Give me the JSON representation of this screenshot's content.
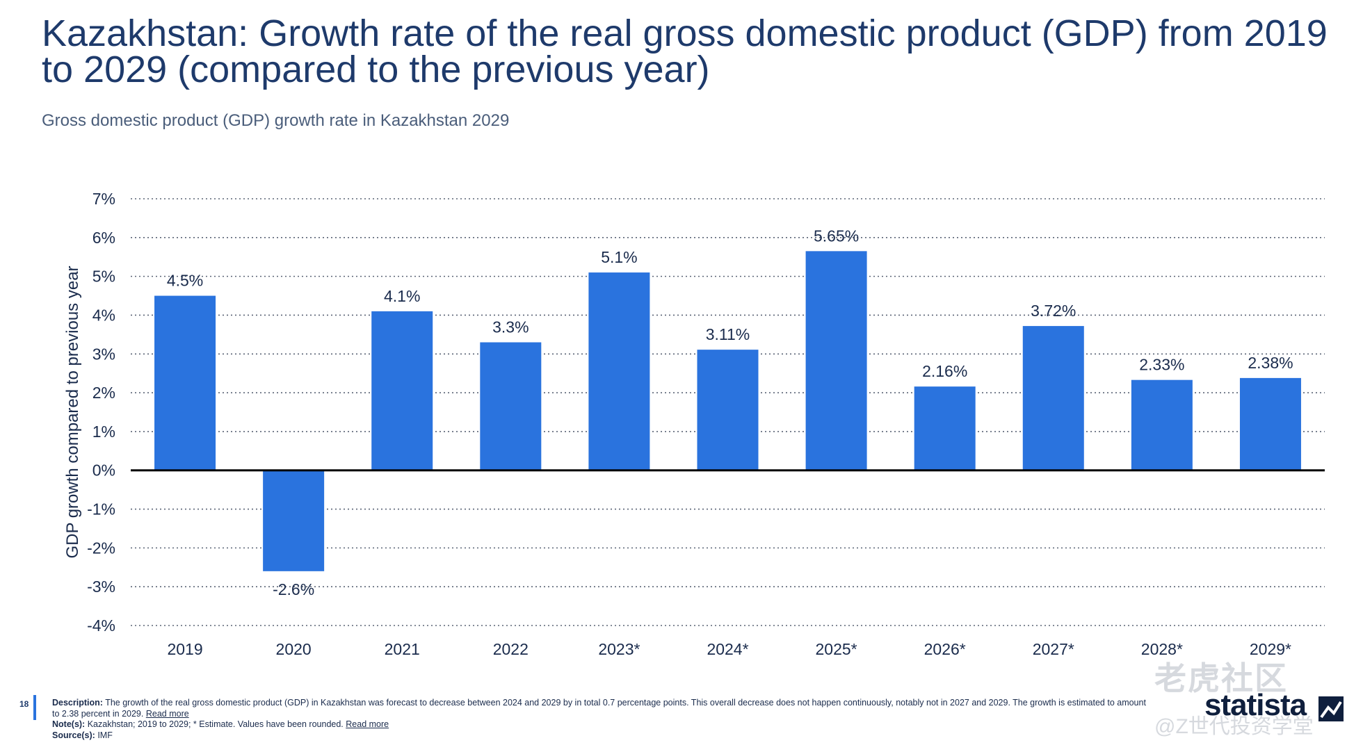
{
  "header": {
    "title": "Kazakhstan: Growth rate of the real gross domestic product (GDP) from 2019 to 2029 (compared to the previous year)",
    "subtitle": "Gross domestic product (GDP) growth rate in Kazakhstan 2029"
  },
  "chart_data": {
    "type": "bar",
    "categories": [
      "2019",
      "2020",
      "2021",
      "2022",
      "2023*",
      "2024*",
      "2025*",
      "2026*",
      "2027*",
      "2028*",
      "2029*"
    ],
    "values": [
      4.5,
      -2.6,
      4.1,
      3.3,
      5.1,
      3.11,
      5.65,
      2.16,
      3.72,
      2.33,
      2.38
    ],
    "labels": [
      "4.5%",
      "-2.6%",
      "4.1%",
      "3.3%",
      "5.1%",
      "3.11%",
      "5.65%",
      "2.16%",
      "3.72%",
      "2.33%",
      "2.38%"
    ],
    "ylabel": "GDP growth compared to previous year",
    "xlabel": "",
    "ylim": [
      -4,
      7
    ],
    "yticks": [
      7,
      6,
      5,
      4,
      3,
      2,
      1,
      0,
      -1,
      -2,
      -3,
      -4
    ],
    "ytick_labels": [
      "7%",
      "6%",
      "5%",
      "4%",
      "3%",
      "2%",
      "1%",
      "0%",
      "-1%",
      "-2%",
      "-3%",
      "-4%"
    ],
    "grid": true,
    "bar_color": "#2a73de"
  },
  "footer": {
    "page_number": "18",
    "description_label": "Description:",
    "description_text": "The growth of the real gross domestic product (GDP) in Kazakhstan was forecast to decrease between 2024 and 2029 by in total 0.7 percentage points. This overall decrease does not happen continuously, notably not in 2027 and 2029. The growth is estimated to amount to 2.38 percent in 2029.",
    "read_more_1": "Read more",
    "notes_label": "Note(s):",
    "notes_text": "Kazakhstan; 2019 to 2029; * Estimate. Values have been rounded.",
    "read_more_2": "Read more",
    "source_label": "Source(s):",
    "source_text": "IMF"
  },
  "branding": {
    "logo_text": "statista",
    "watermark_text": "老虎社区",
    "watermark_sub": "@Z世代投资学堂"
  }
}
